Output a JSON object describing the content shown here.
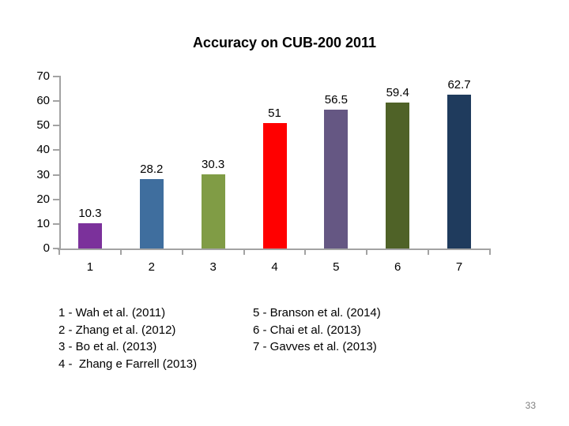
{
  "slide": {
    "page_number": "33"
  },
  "chart_data": {
    "type": "bar",
    "title": "Accuracy on CUB-200 2011",
    "categories": [
      "1",
      "2",
      "3",
      "4",
      "5",
      "6",
      "7"
    ],
    "values": [
      10.3,
      28.2,
      30.3,
      51,
      56.5,
      59.4,
      62.7
    ],
    "value_labels": [
      "10.3",
      "28.2",
      "30.3",
      "51",
      "56.5",
      "59.4",
      "62.7"
    ],
    "bar_colors": [
      "#7B319B",
      "#3F6E9E",
      "#809C45",
      "#FF0000",
      "#655783",
      "#4F6227",
      "#1F3B5D"
    ],
    "xlabel": "",
    "ylabel": "",
    "ylim": [
      0,
      70
    ],
    "yticks": [
      0,
      10,
      20,
      30,
      40,
      50,
      60,
      70
    ],
    "grid": false,
    "legend_position": "below-as-text",
    "axis_color": "#A3A3A3",
    "text_color": "#000000"
  },
  "legend": {
    "left_column": [
      "1 - Wah et al. (2011)",
      "2 - Zhang et al. (2012)",
      "3 - Bo et al. (2013)",
      "4 -  Zhang e Farrell (2013)"
    ],
    "right_column": [
      "5 - Branson et al. (2014)",
      "6 - Chai et al. (2013)",
      "7 - Gavves et al. (2013)"
    ]
  }
}
